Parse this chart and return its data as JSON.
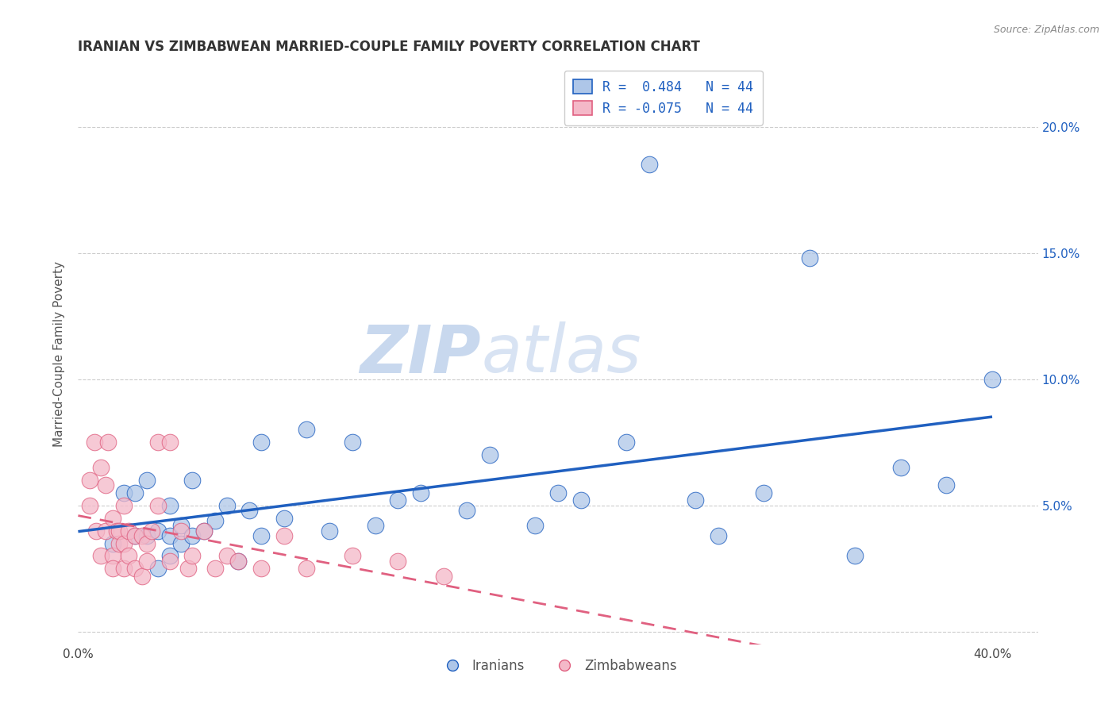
{
  "title": "IRANIAN VS ZIMBABWEAN MARRIED-COUPLE FAMILY POVERTY CORRELATION CHART",
  "source": "Source: ZipAtlas.com",
  "ylabel": "Married-Couple Family Poverty",
  "xlabel": "",
  "xlim": [
    0.0,
    0.42
  ],
  "ylim": [
    -0.005,
    0.225
  ],
  "xticks": [
    0.0,
    0.05,
    0.1,
    0.15,
    0.2,
    0.25,
    0.3,
    0.35,
    0.4
  ],
  "yticks": [
    0.0,
    0.05,
    0.1,
    0.15,
    0.2
  ],
  "legend_R1": "R =  0.484",
  "legend_N1": "N = 44",
  "legend_R2": "R = -0.075",
  "legend_N2": "N = 44",
  "legend_label1": "Iranians",
  "legend_label2": "Zimbabweans",
  "color_iranian": "#aec6e8",
  "color_zimbabwean": "#f4b8c8",
  "color_trend_iranian": "#2060c0",
  "color_trend_zimbabwean": "#e06080",
  "watermark_zip": "ZIP",
  "watermark_atlas": "atlas",
  "background_color": "#ffffff",
  "iranian_x": [
    0.015,
    0.02,
    0.025,
    0.025,
    0.03,
    0.03,
    0.035,
    0.035,
    0.04,
    0.04,
    0.04,
    0.045,
    0.045,
    0.05,
    0.05,
    0.055,
    0.06,
    0.065,
    0.07,
    0.075,
    0.08,
    0.08,
    0.09,
    0.1,
    0.11,
    0.12,
    0.13,
    0.14,
    0.15,
    0.17,
    0.18,
    0.2,
    0.21,
    0.22,
    0.24,
    0.25,
    0.27,
    0.28,
    0.3,
    0.32,
    0.34,
    0.36,
    0.38,
    0.4
  ],
  "iranian_y": [
    0.035,
    0.055,
    0.055,
    0.038,
    0.06,
    0.038,
    0.025,
    0.04,
    0.05,
    0.03,
    0.038,
    0.035,
    0.042,
    0.038,
    0.06,
    0.04,
    0.044,
    0.05,
    0.028,
    0.048,
    0.038,
    0.075,
    0.045,
    0.08,
    0.04,
    0.075,
    0.042,
    0.052,
    0.055,
    0.048,
    0.07,
    0.042,
    0.055,
    0.052,
    0.075,
    0.185,
    0.052,
    0.038,
    0.055,
    0.148,
    0.03,
    0.065,
    0.058,
    0.1
  ],
  "zimbabwean_x": [
    0.005,
    0.005,
    0.007,
    0.008,
    0.01,
    0.01,
    0.012,
    0.012,
    0.013,
    0.015,
    0.015,
    0.015,
    0.017,
    0.018,
    0.018,
    0.02,
    0.02,
    0.02,
    0.022,
    0.022,
    0.025,
    0.025,
    0.028,
    0.028,
    0.03,
    0.03,
    0.032,
    0.035,
    0.035,
    0.04,
    0.04,
    0.045,
    0.048,
    0.05,
    0.055,
    0.06,
    0.065,
    0.07,
    0.08,
    0.09,
    0.1,
    0.12,
    0.14,
    0.16
  ],
  "zimbabwean_y": [
    0.06,
    0.05,
    0.075,
    0.04,
    0.065,
    0.03,
    0.04,
    0.058,
    0.075,
    0.045,
    0.03,
    0.025,
    0.04,
    0.035,
    0.04,
    0.05,
    0.035,
    0.025,
    0.04,
    0.03,
    0.038,
    0.025,
    0.038,
    0.022,
    0.035,
    0.028,
    0.04,
    0.075,
    0.05,
    0.075,
    0.028,
    0.04,
    0.025,
    0.03,
    0.04,
    0.025,
    0.03,
    0.028,
    0.025,
    0.038,
    0.025,
    0.03,
    0.028,
    0.022
  ]
}
